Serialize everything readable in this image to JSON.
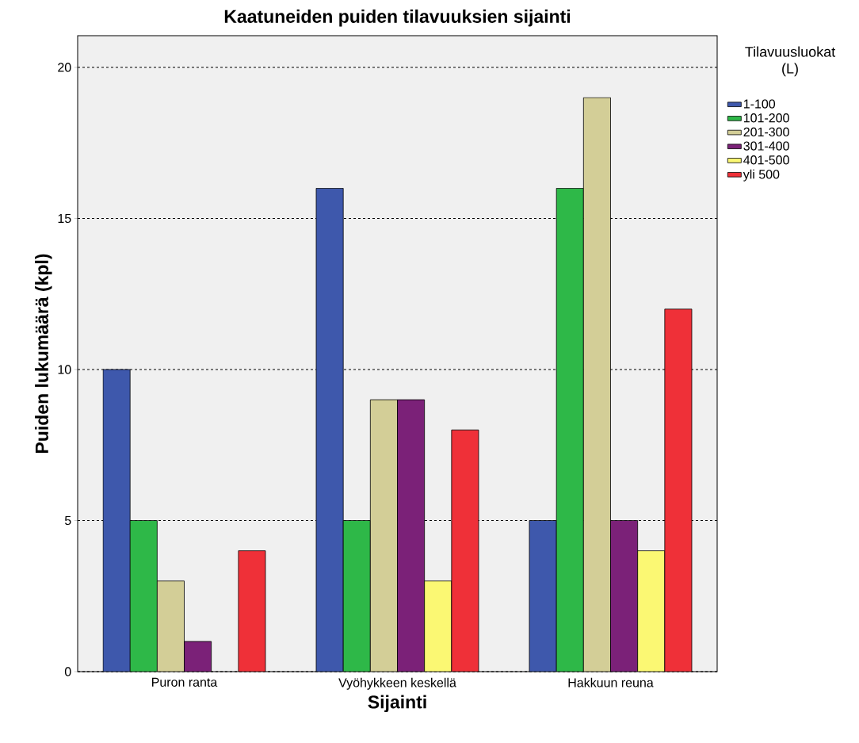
{
  "chart_data": {
    "type": "bar",
    "title": "Kaatuneiden puiden tilavuuksien sijainti",
    "xlabel": "Sijainti",
    "ylabel": "Puiden lukumäärä (kpl)",
    "legend_title": "Tilavuusluokat (L)",
    "categories": [
      "Puron ranta",
      "Vyöhykkeen keskellä",
      "Hakkuun reuna"
    ],
    "series": [
      {
        "name": "1-100",
        "color": "#3e58ac",
        "values": [
          10,
          16,
          5
        ]
      },
      {
        "name": "101-200",
        "color": "#2eb848",
        "values": [
          5,
          5,
          16
        ]
      },
      {
        "name": "201-300",
        "color": "#d3ce97",
        "values": [
          3,
          9,
          19
        ]
      },
      {
        "name": "301-400",
        "color": "#7b2178",
        "values": [
          1,
          9,
          5
        ]
      },
      {
        "name": "401-500",
        "color": "#fbf873",
        "values": [
          null,
          3,
          4
        ]
      },
      {
        "name": "yli 500",
        "color": "#ef3038",
        "values": [
          4,
          8,
          12
        ]
      }
    ],
    "ylim": [
      0,
      21.05
    ],
    "yticks": [
      0,
      5,
      10,
      15,
      20
    ],
    "grid": "y",
    "legend": "top right"
  }
}
